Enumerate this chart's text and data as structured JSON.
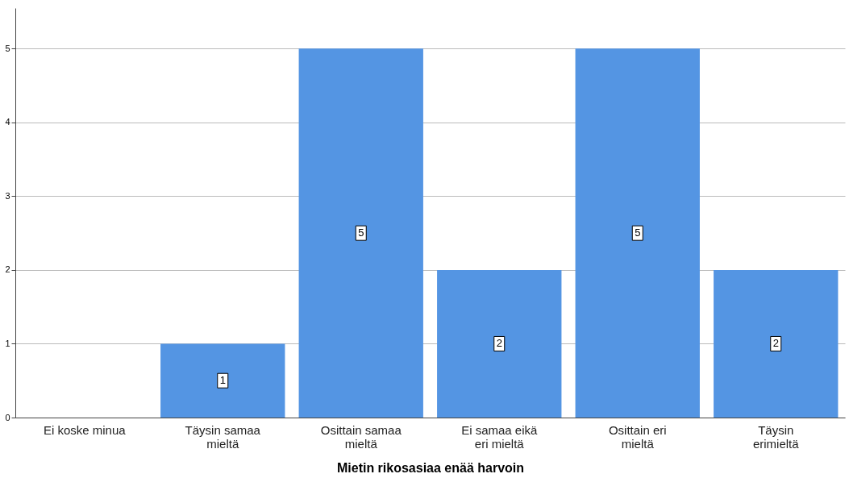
{
  "chart_data": {
    "type": "bar",
    "xlabel": "Mietin rikosasiaa enää harvoin",
    "categories": [
      "Ei koske minua",
      "Täysin samaa mieltä",
      "Osittain samaa mieltä",
      "Ei samaa eikä eri mieltä",
      "Osittain eri mieltä",
      "Täysin erimieltä"
    ],
    "values": [
      0,
      1,
      5,
      2,
      5,
      2
    ],
    "value_labels": [
      null,
      "1",
      "5",
      "2",
      "5",
      "2"
    ],
    "color": "#5495e3",
    "ylim": [
      0,
      5.55
    ],
    "yticks": [
      0,
      1,
      2,
      3,
      4,
      5
    ],
    "grid": "y"
  }
}
